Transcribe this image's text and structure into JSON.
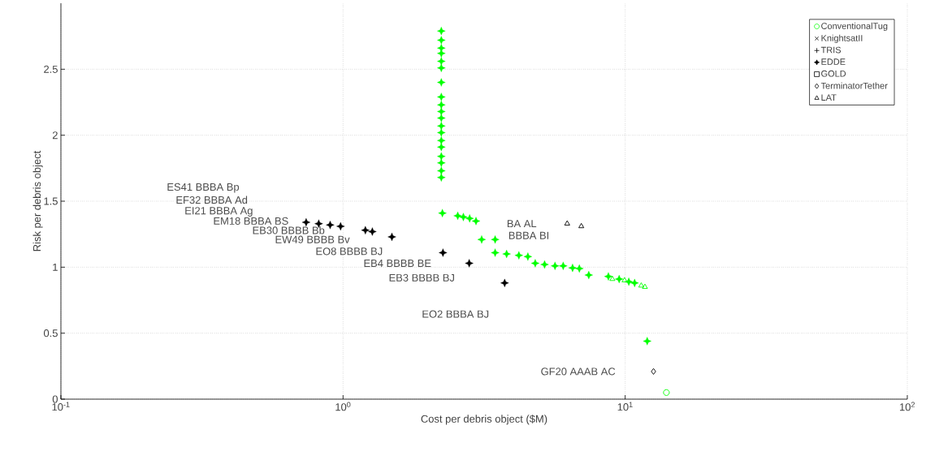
{
  "chart_data": {
    "type": "scatter",
    "xlabel": "Cost per debris object ($M)",
    "ylabel": "Risk per debris object",
    "log": "x",
    "grid": true,
    "legend": "top right",
    "xlim": [
      0.1,
      100
    ],
    "ylim": [
      0,
      3
    ],
    "xticks": [
      {
        "value": 0.1,
        "label": "10$^{-1}$"
      },
      {
        "value": 1,
        "label": "10$^{0}$"
      },
      {
        "value": 10,
        "label": "10$^{1}$"
      },
      {
        "value": 100,
        "label": "10$^{2}$"
      }
    ],
    "yticks": [
      0,
      0.5,
      1,
      1.5,
      2,
      2.5
    ],
    "series": [
      {
        "name": "ConventionalTug",
        "color": "#00ff00",
        "marker": "circle",
        "x": [
          14.0
        ],
        "values": [
          0.05
        ]
      },
      {
        "name": "KnightsatII",
        "color": "#000000",
        "marker": "cross"
      },
      {
        "name": "TRIS",
        "color": "#000000",
        "marker": "plus"
      },
      {
        "name": "EDDE",
        "color": "#000000",
        "marker": "star",
        "x": [
          0.74,
          0.82,
          0.9,
          0.98,
          1.2,
          1.27,
          1.49,
          2.26,
          2.8,
          3.74
        ],
        "values": [
          1.34,
          1.33,
          1.32,
          1.31,
          1.28,
          1.27,
          1.23,
          1.11,
          1.03,
          0.88
        ]
      },
      {
        "name": "GOLD",
        "color": "#000000",
        "marker": "square"
      },
      {
        "name": "TerminatorTether",
        "color": "#000000",
        "marker": "diamond",
        "x": [
          12.6
        ],
        "values": [
          0.21
        ]
      },
      {
        "name": "LAT",
        "color": "#000000",
        "marker": "triangle",
        "x": [
          6.23,
          6.99
        ],
        "values": [
          1.33,
          1.31
        ]
      },
      {
        "color": "#00ff00",
        "marker": "star",
        "x": [
          2.23,
          2.23,
          2.23,
          2.23,
          2.23,
          2.23,
          2.23,
          2.23,
          2.23,
          2.23,
          2.23,
          2.23,
          2.23,
          2.23,
          2.23,
          2.23,
          2.23,
          2.23,
          2.23,
          2.25,
          2.55,
          2.67,
          2.81,
          2.96,
          3.1,
          3.46,
          3.46,
          3.8,
          4.2,
          4.52,
          4.8,
          5.18,
          5.64,
          6.03,
          6.51,
          6.88,
          7.43,
          8.72,
          9.52,
          10.3,
          10.8,
          11.97
        ],
        "values": [
          2.79,
          2.72,
          2.66,
          2.62,
          2.56,
          2.51,
          2.4,
          2.29,
          2.23,
          2.18,
          2.13,
          2.07,
          2.02,
          1.96,
          1.91,
          1.84,
          1.79,
          1.73,
          1.68,
          1.41,
          1.39,
          1.38,
          1.37,
          1.35,
          1.21,
          1.21,
          1.11,
          1.1,
          1.09,
          1.08,
          1.03,
          1.02,
          1.01,
          1.01,
          0.995,
          0.99,
          0.94,
          0.93,
          0.91,
          0.89,
          0.88,
          0.44
        ]
      },
      {
        "color": "#00ff00",
        "marker": "triangle",
        "x": [
          9.01,
          9.95,
          11.4,
          11.75
        ],
        "values": [
          0.91,
          0.9,
          0.86,
          0.85
        ]
      }
    ],
    "annotations": [
      "ES41 BBBA Bp",
      "EF32 BBBA Ad",
      "EI21 BBBA Ag",
      "EM18 BBBA BS",
      "EB30 BBBB Bb",
      "EW49 BBBB Bv",
      "EO8 BBBB BJ",
      "EB4 BBBB BE",
      "EB3 BBBB BJ",
      "EO2 BBBA BJ",
      "BA AL",
      "BBBA BI",
      "GF20 AAAB AC"
    ]
  }
}
